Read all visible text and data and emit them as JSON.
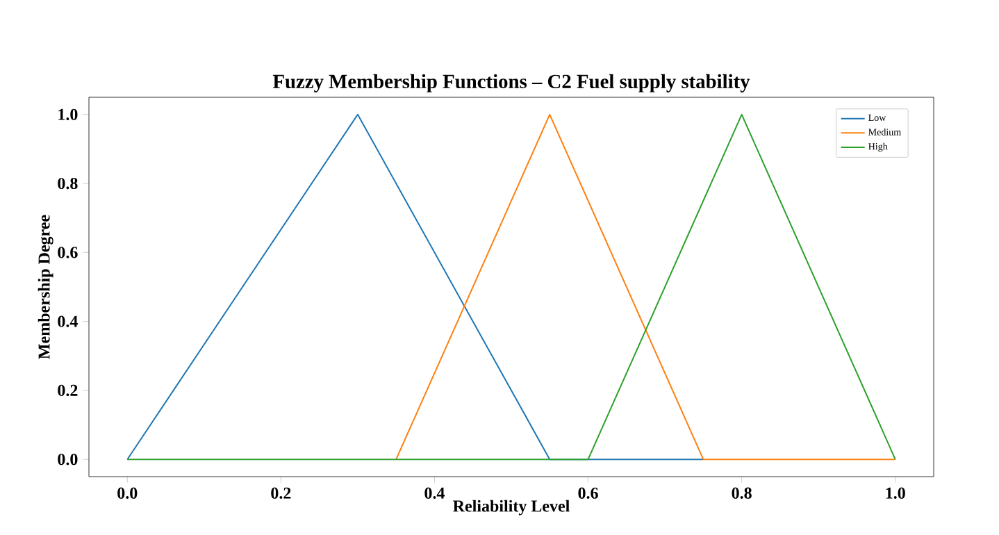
{
  "chart_data": {
    "type": "line",
    "title": "Fuzzy Membership Functions – C2 Fuel supply stability",
    "xlabel": "Reliability Level",
    "ylabel": "Membership Degree",
    "series": [
      {
        "name": "Low",
        "color": "#1f77b4",
        "x": [
          0,
          0.3,
          0.55,
          0.75
        ],
        "values": [
          0,
          1,
          0,
          0
        ]
      },
      {
        "name": "Medium",
        "color": "#ff7f0e",
        "x": [
          0.35,
          0.55,
          0.75,
          1
        ],
        "values": [
          0,
          1,
          0,
          0
        ]
      },
      {
        "name": "High",
        "color": "#2ca02c",
        "x": [
          0,
          0.6,
          0.8,
          1
        ],
        "values": [
          0,
          0,
          1,
          0
        ]
      }
    ],
    "xlim": [
      -0.05,
      1.05
    ],
    "ylim": [
      -0.05,
      1.05
    ],
    "xticks": [
      {
        "value": 0,
        "label": "0.0"
      },
      0.2,
      0.4,
      0.6,
      0.8,
      {
        "value": 1,
        "label": "1.0"
      }
    ],
    "yticks": [
      {
        "value": 0,
        "label": "0.0"
      },
      0.2,
      0.4,
      0.6,
      0.8,
      {
        "value": 1,
        "label": "1.0"
      }
    ],
    "grid": false,
    "legend": "top right",
    "marker": "none",
    "line_style": "solid"
  }
}
